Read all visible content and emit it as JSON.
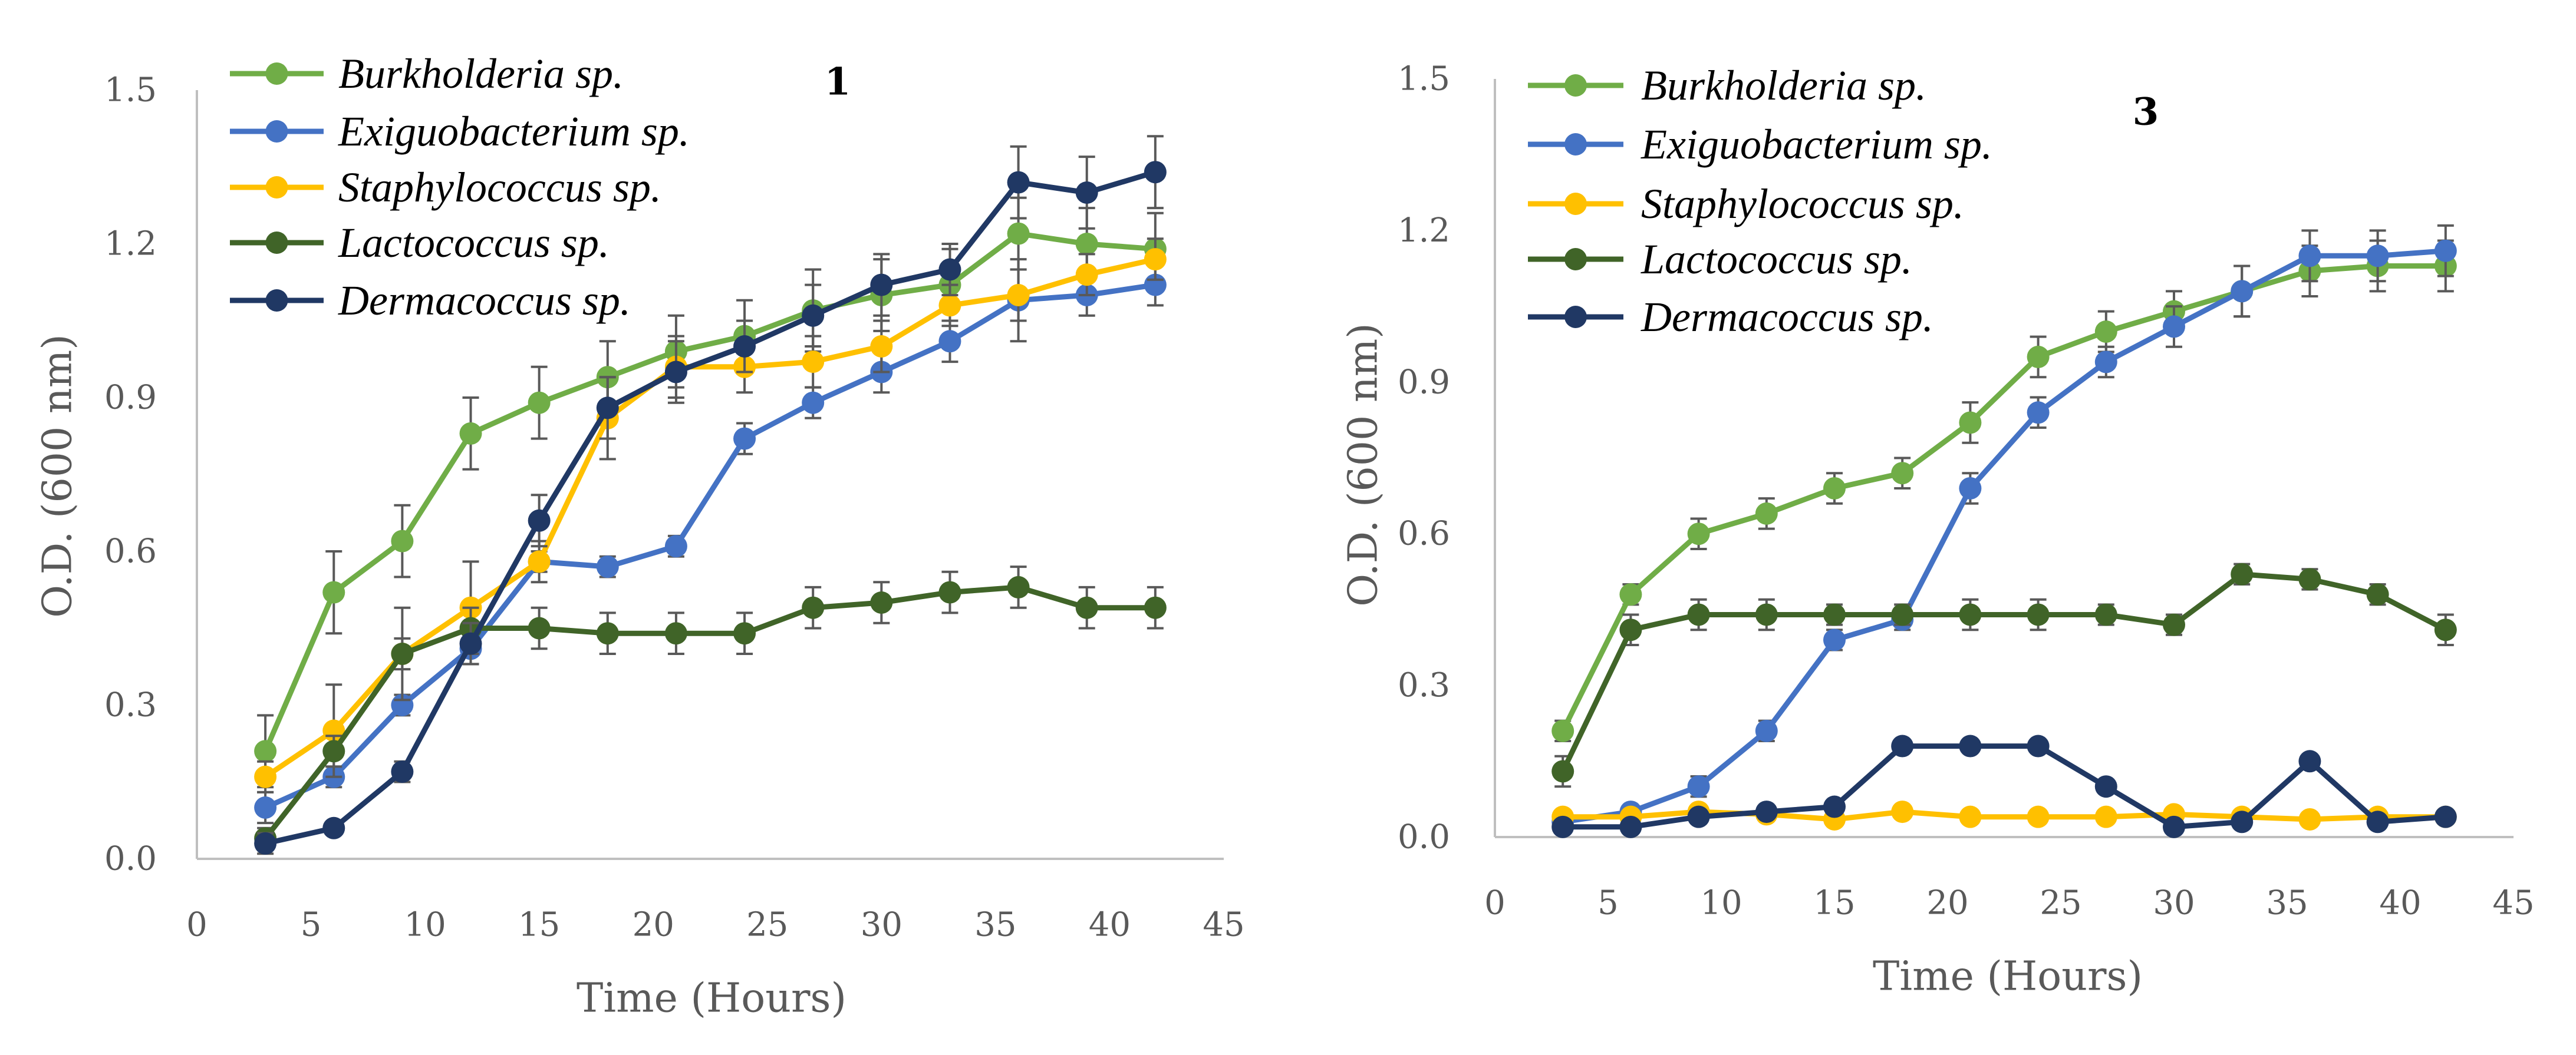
{
  "chart_data": [
    {
      "type": "line",
      "title": "1",
      "xlabel": "Time (Hours)",
      "ylabel": "O.D. (600 nm)",
      "xlim": [
        0,
        45
      ],
      "ylim": [
        0,
        1.5
      ],
      "xticks": [
        "0",
        "5",
        "10",
        "15",
        "20",
        "25",
        "30",
        "35",
        "40",
        "45"
      ],
      "yticks": [
        "0.0",
        "0.3",
        "0.6",
        "0.9",
        "1.2",
        "1.5"
      ],
      "grid": false,
      "legend": "top-left",
      "x": [
        3,
        6,
        9,
        12,
        15,
        18,
        21,
        24,
        27,
        30,
        33,
        36,
        39,
        42
      ],
      "series": [
        {
          "name": "Burkholderia sp.",
          "color": "#70AD47",
          "values": [
            0.21,
            0.52,
            0.62,
            0.83,
            0.89,
            0.94,
            0.99,
            1.02,
            1.07,
            1.1,
            1.12,
            1.22,
            1.2,
            1.19
          ],
          "errors": [
            0.07,
            0.08,
            0.07,
            0.07,
            0.07,
            0.07,
            0.07,
            0.07,
            0.08,
            0.07,
            0.07,
            0.07,
            0.07,
            0.07
          ]
        },
        {
          "name": "Exiguobacterium sp.",
          "color": "#4472C4",
          "values": [
            0.1,
            0.16,
            0.3,
            0.41,
            0.58,
            0.57,
            0.61,
            0.82,
            0.89,
            0.95,
            1.01,
            1.09,
            1.1,
            1.12
          ],
          "errors": [
            0.03,
            0.02,
            0.02,
            0.03,
            0.02,
            0.02,
            0.02,
            0.03,
            0.03,
            0.04,
            0.04,
            0.08,
            0.04,
            0.04
          ]
        },
        {
          "name": "Staphylococcus sp.",
          "color": "#FFC000",
          "values": [
            0.16,
            0.25,
            0.4,
            0.49,
            0.58,
            0.86,
            0.96,
            0.96,
            0.97,
            1.0,
            1.08,
            1.1,
            1.14,
            1.17
          ],
          "errors": [
            0.03,
            0.09,
            0.09,
            0.09,
            0.04,
            0.08,
            0.06,
            0.05,
            0.05,
            0.05,
            0.04,
            0.05,
            0.04,
            0.04
          ]
        },
        {
          "name": "Lactococcus sp.",
          "color": "#406428",
          "values": [
            0.04,
            0.21,
            0.4,
            0.45,
            0.45,
            0.44,
            0.44,
            0.44,
            0.49,
            0.5,
            0.52,
            0.53,
            0.49,
            0.49
          ],
          "errors": [
            0.02,
            0.03,
            0.03,
            0.04,
            0.04,
            0.04,
            0.04,
            0.04,
            0.04,
            0.04,
            0.04,
            0.04,
            0.04,
            0.04
          ]
        },
        {
          "name": "Dermacoccus sp.",
          "color": "#203864",
          "values": [
            0.03,
            0.06,
            0.17,
            0.42,
            0.66,
            0.88,
            0.95,
            1.0,
            1.06,
            1.12,
            1.15,
            1.32,
            1.3,
            1.34
          ],
          "errors": [
            0.02,
            0.01,
            0.02,
            0.04,
            0.05,
            0.06,
            0.06,
            0.05,
            0.06,
            0.06,
            0.05,
            0.07,
            0.07,
            0.07
          ]
        }
      ]
    },
    {
      "type": "line",
      "title": "3",
      "xlabel": "Time (Hours)",
      "ylabel": "O.D. (600 nm)",
      "xlim": [
        0,
        45
      ],
      "ylim": [
        0,
        1.5
      ],
      "xticks": [
        "0",
        "5",
        "10",
        "15",
        "20",
        "25",
        "30",
        "35",
        "40",
        "45"
      ],
      "yticks": [
        "0.0",
        "0.3",
        "0.6",
        "0.9",
        "1.2",
        "1.5"
      ],
      "grid": false,
      "legend": "top-left",
      "x": [
        3,
        6,
        9,
        12,
        15,
        18,
        21,
        24,
        27,
        30,
        33,
        36,
        39,
        42
      ],
      "series": [
        {
          "name": "Burkholderia sp.",
          "color": "#70AD47",
          "values": [
            0.21,
            0.48,
            0.6,
            0.64,
            0.69,
            0.72,
            0.82,
            0.95,
            1.0,
            1.04,
            1.08,
            1.12,
            1.13,
            1.13
          ],
          "errors": [
            0.02,
            0.02,
            0.03,
            0.03,
            0.03,
            0.03,
            0.04,
            0.04,
            0.04,
            0.04,
            0.05,
            0.05,
            0.05,
            0.05
          ]
        },
        {
          "name": "Exiguobacterium sp.",
          "color": "#4472C4",
          "values": [
            0.03,
            0.05,
            0.1,
            0.21,
            0.39,
            0.43,
            0.69,
            0.84,
            0.94,
            1.01,
            1.08,
            1.15,
            1.15,
            1.16
          ],
          "errors": [
            0.01,
            0.01,
            0.02,
            0.02,
            0.02,
            0.02,
            0.03,
            0.03,
            0.03,
            0.04,
            0.05,
            0.05,
            0.05,
            0.05
          ]
        },
        {
          "name": "Staphylococcus sp.",
          "color": "#FFC000",
          "values": [
            0.04,
            0.04,
            0.05,
            0.045,
            0.035,
            0.05,
            0.04,
            0.04,
            0.04,
            0.045,
            0.04,
            0.035,
            0.04,
            0.04
          ],
          "errors": [
            0.01,
            0.01,
            0.01,
            0.01,
            0.01,
            0.01,
            0.01,
            0.01,
            0.01,
            0.01,
            0.01,
            0.01,
            0.01,
            0.01
          ]
        },
        {
          "name": "Lactococcus sp.",
          "color": "#406428",
          "values": [
            0.13,
            0.41,
            0.44,
            0.44,
            0.44,
            0.44,
            0.44,
            0.44,
            0.44,
            0.42,
            0.52,
            0.51,
            0.48,
            0.41
          ],
          "errors": [
            0.03,
            0.03,
            0.03,
            0.03,
            0.02,
            0.02,
            0.03,
            0.03,
            0.02,
            0.02,
            0.02,
            0.02,
            0.02,
            0.03
          ]
        },
        {
          "name": "Dermacoccus sp.",
          "color": "#203864",
          "values": [
            0.02,
            0.02,
            0.04,
            0.05,
            0.06,
            0.18,
            0.18,
            0.18,
            0.1,
            0.02,
            0.03,
            0.15,
            0.03,
            0.04
          ],
          "errors": [
            0.01,
            0.01,
            0.01,
            0.01,
            0.01,
            0.01,
            0.01,
            0.01,
            0.01,
            0.01,
            0.01,
            0.01,
            0.01,
            0.01
          ]
        }
      ]
    }
  ]
}
